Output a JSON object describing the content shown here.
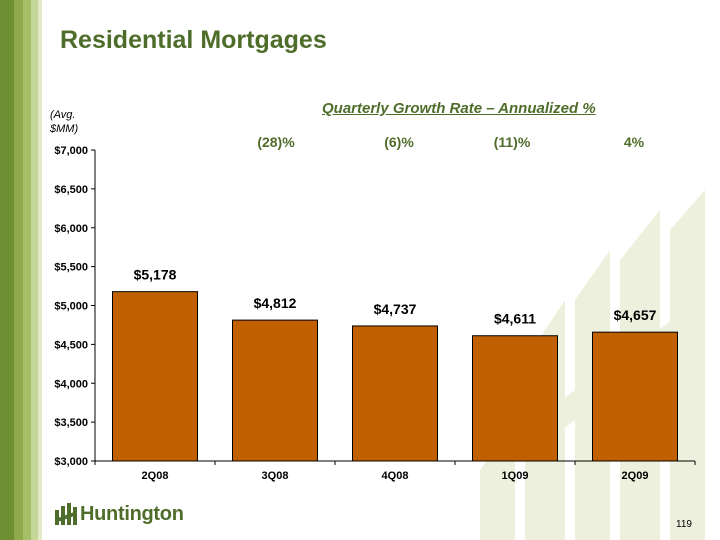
{
  "slide": {
    "title": "Residential Mortgages",
    "unit_label_line1": "(Avg.",
    "unit_label_line2": "$MM)",
    "growth_title": "Quarterly Growth Rate – Annualized  %",
    "growth_rates": [
      "(28)%",
      "(6)%",
      "(11)%",
      "4%"
    ],
    "logo_text": "Huntington",
    "page_number": "119"
  },
  "colors": {
    "bar": "#c06000",
    "title": "#4f6d2a",
    "watermark": "#ecf0dd"
  },
  "chart_data": {
    "type": "bar",
    "categories": [
      "2Q08",
      "3Q08",
      "4Q08",
      "1Q09",
      "2Q09"
    ],
    "values": [
      5178,
      4812,
      4737,
      4611,
      4657
    ],
    "data_labels": [
      "$5,178",
      "$4,812",
      "$4,737",
      "$4,611",
      "$4,657"
    ],
    "ylim": [
      3000,
      7000
    ],
    "y_ticks": [
      3000,
      3500,
      4000,
      4500,
      5000,
      5500,
      6000,
      6500,
      7000
    ],
    "y_tick_labels": [
      "$3,000",
      "$3,500",
      "$4,000",
      "$4,500",
      "$5,000",
      "$5,500",
      "$6,000",
      "$6,500",
      "$7,000"
    ],
    "grid": false,
    "legend": "none"
  }
}
